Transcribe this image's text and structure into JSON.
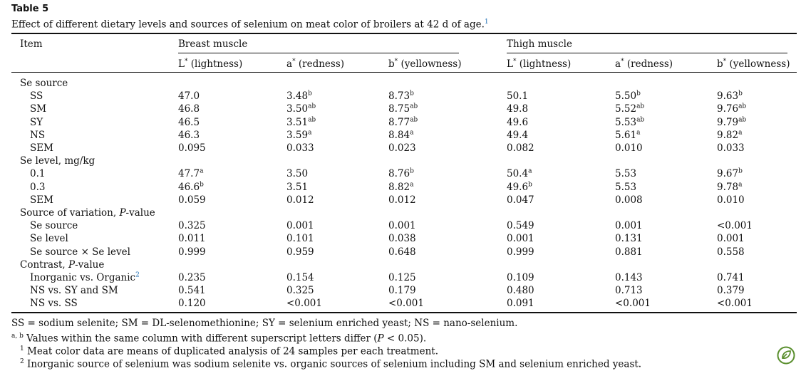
{
  "caption": {
    "label": "Table 5",
    "title": "Effect of different dietary levels and sources of selenium on meat color of broilers at 42 d of age.",
    "title_note": "1"
  },
  "header": {
    "item": "Item",
    "breast": "Breast muscle",
    "thigh": "Thigh muscle",
    "cols": [
      {
        "sym": "L",
        "star": "*",
        "desc": "(lightness)"
      },
      {
        "sym": "a",
        "star": "*",
        "desc": "(redness)"
      },
      {
        "sym": "b",
        "star": "*",
        "desc": "(yellowness)"
      },
      {
        "sym": "L",
        "star": "*",
        "desc": "(lightness)"
      },
      {
        "sym": "a",
        "star": "*",
        "desc": "(redness)"
      },
      {
        "sym": "b",
        "star": "*",
        "desc": "(yellowness)"
      }
    ]
  },
  "rows": [
    {
      "label": "Se source",
      "indent": 0,
      "cells": []
    },
    {
      "label": "SS",
      "indent": 1,
      "cells": [
        [
          "47.0",
          ""
        ],
        [
          "3.48",
          "b"
        ],
        [
          "8.73",
          "b"
        ],
        [
          "50.1",
          ""
        ],
        [
          "5.50",
          "b"
        ],
        [
          "9.63",
          "b"
        ]
      ]
    },
    {
      "label": "SM",
      "indent": 1,
      "cells": [
        [
          "46.8",
          ""
        ],
        [
          "3.50",
          "ab"
        ],
        [
          "8.75",
          "ab"
        ],
        [
          "49.8",
          ""
        ],
        [
          "5.52",
          "ab"
        ],
        [
          "9.76",
          "ab"
        ]
      ]
    },
    {
      "label": "SY",
      "indent": 1,
      "cells": [
        [
          "46.5",
          ""
        ],
        [
          "3.51",
          "ab"
        ],
        [
          "8.77",
          "ab"
        ],
        [
          "49.6",
          ""
        ],
        [
          "5.53",
          "ab"
        ],
        [
          "9.79",
          "ab"
        ]
      ]
    },
    {
      "label": "NS",
      "indent": 1,
      "cells": [
        [
          "46.3",
          ""
        ],
        [
          "3.59",
          "a"
        ],
        [
          "8.84",
          "a"
        ],
        [
          "49.4",
          ""
        ],
        [
          "5.61",
          "a"
        ],
        [
          "9.82",
          "a"
        ]
      ]
    },
    {
      "label": "SEM",
      "indent": 1,
      "cells": [
        [
          "0.095",
          ""
        ],
        [
          "0.033",
          ""
        ],
        [
          "0.023",
          ""
        ],
        [
          "0.082",
          ""
        ],
        [
          "0.010",
          ""
        ],
        [
          "0.033",
          ""
        ]
      ]
    },
    {
      "label": "Se level, mg/kg",
      "indent": 0,
      "cells": []
    },
    {
      "label": "0.1",
      "indent": 1,
      "cells": [
        [
          "47.7",
          "a"
        ],
        [
          "3.50",
          ""
        ],
        [
          "8.76",
          "b"
        ],
        [
          "50.4",
          "a"
        ],
        [
          "5.53",
          ""
        ],
        [
          "9.67",
          "b"
        ]
      ]
    },
    {
      "label": "0.3",
      "indent": 1,
      "cells": [
        [
          "46.6",
          "b"
        ],
        [
          "3.51",
          ""
        ],
        [
          "8.82",
          "a"
        ],
        [
          "49.6",
          "b"
        ],
        [
          "5.53",
          ""
        ],
        [
          "9.78",
          "a"
        ]
      ]
    },
    {
      "label": "SEM",
      "indent": 1,
      "cells": [
        [
          "0.059",
          ""
        ],
        [
          "0.012",
          ""
        ],
        [
          "0.012",
          ""
        ],
        [
          "0.047",
          ""
        ],
        [
          "0.008",
          ""
        ],
        [
          "0.010",
          ""
        ]
      ]
    },
    {
      "label": "Source of variation, ",
      "label_italic": "P",
      "label_suffix": "-value",
      "indent": 0,
      "cells": []
    },
    {
      "label": "Se source",
      "indent": 1,
      "cells": [
        [
          "0.325",
          ""
        ],
        [
          "0.001",
          ""
        ],
        [
          "0.001",
          ""
        ],
        [
          "0.549",
          ""
        ],
        [
          "0.001",
          ""
        ],
        [
          "<0.001",
          ""
        ]
      ]
    },
    {
      "label": "Se level",
      "indent": 1,
      "cells": [
        [
          "0.011",
          ""
        ],
        [
          "0.101",
          ""
        ],
        [
          "0.038",
          ""
        ],
        [
          "0.001",
          ""
        ],
        [
          "0.131",
          ""
        ],
        [
          "0.001",
          ""
        ]
      ]
    },
    {
      "label": "Se source × Se level",
      "indent": 1,
      "cells": [
        [
          "0.999",
          ""
        ],
        [
          "0.959",
          ""
        ],
        [
          "0.648",
          ""
        ],
        [
          "0.999",
          ""
        ],
        [
          "0.881",
          ""
        ],
        [
          "0.558",
          ""
        ]
      ]
    },
    {
      "label": "Contrast, ",
      "label_italic": "P",
      "label_suffix": "-value",
      "indent": 0,
      "cells": []
    },
    {
      "label": "Inorganic vs. Organic",
      "label_note": "2",
      "indent": 1,
      "cells": [
        [
          "0.235",
          ""
        ],
        [
          "0.154",
          ""
        ],
        [
          "0.125",
          ""
        ],
        [
          "0.109",
          ""
        ],
        [
          "0.143",
          ""
        ],
        [
          "0.741",
          ""
        ]
      ]
    },
    {
      "label": "NS vs. SY and SM",
      "indent": 1,
      "cells": [
        [
          "0.541",
          ""
        ],
        [
          "0.325",
          ""
        ],
        [
          "0.179",
          ""
        ],
        [
          "0.480",
          ""
        ],
        [
          "0.713",
          ""
        ],
        [
          "0.379",
          ""
        ]
      ]
    },
    {
      "label": "NS vs. SS",
      "indent": 1,
      "cells": [
        [
          "0.120",
          ""
        ],
        [
          "<0.001",
          ""
        ],
        [
          "<0.001",
          ""
        ],
        [
          "0.091",
          ""
        ],
        [
          "<0.001",
          ""
        ],
        [
          "<0.001",
          ""
        ]
      ]
    }
  ],
  "footnotes": {
    "abbrev": "SS = sodium selenite; SM = DL-selenomethionine; SY = selenium enriched yeast; NS = nano-selenium.",
    "ab_mark": "a, b",
    "ab_text_1": " Values within the same column with different superscript letters differ (",
    "ab_p": "P",
    "ab_text_2": " < 0.05).",
    "n1_mark": "1",
    "n1_text": " Meat color data are means of duplicated analysis of 24 samples per each treatment.",
    "n2_mark": "2",
    "n2_text": " Inorganic source of selenium was sodium selenite vs. organic sources of selenium including SM and selenium enriched yeast."
  },
  "badge": {
    "icon": "open-access-leaf-icon",
    "color": "#5a8f2e"
  }
}
